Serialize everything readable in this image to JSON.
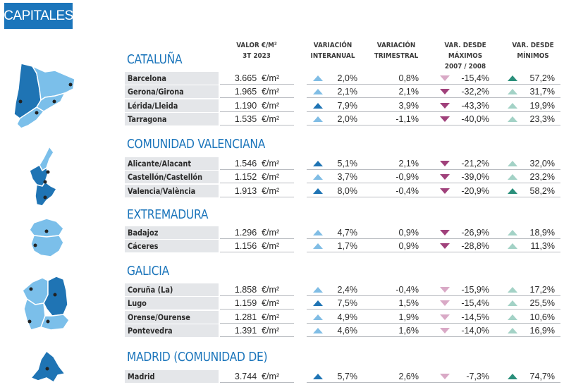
{
  "badge": "CAPITALES",
  "headers": [
    {
      "l1": "VALOR €/M²",
      "l2": "3T 2023"
    },
    {
      "l1": "VARIACIÓN",
      "l2": "INTERANUAL"
    },
    {
      "l1": "VARIACIÓN",
      "l2": "TRIMESTRAL"
    },
    {
      "l1": "VAR. DESDE MÁXIMOS",
      "l2": "2007 / 2008"
    },
    {
      "l1": "VAR. DESDE",
      "l2": "MÍNIMOS"
    }
  ],
  "colors": {
    "brand": "#1b75bb",
    "up_dark": "#1f74b4",
    "up_light": "#80bde5",
    "down_dark": "#a0417b",
    "down_light": "#d9a9c6",
    "min_dark": "#2a8f7b",
    "min_light": "#a3d2c6",
    "map_dark": "#1f74b4",
    "map_light": "#7bbfea"
  },
  "regions": [
    {
      "name": "CATALUÑA",
      "rows": [
        {
          "city": "Barcelona",
          "value": "3.665",
          "unit": "€/m²",
          "yoy": "2,0%",
          "yoy_t": "light",
          "qoq": "0,8%",
          "max": "-15,4%",
          "max_t": "light",
          "min": "57,2%",
          "min_t": "dark"
        },
        {
          "city": "Gerona/Girona",
          "value": "1.965",
          "unit": "€/m²",
          "yoy": "2,1%",
          "yoy_t": "light",
          "qoq": "2,1%",
          "max": "-32,2%",
          "max_t": "dark",
          "min": "31,7%",
          "min_t": "light"
        },
        {
          "city": "Lérida/Lleida",
          "value": "1.190",
          "unit": "€/m²",
          "yoy": "7,9%",
          "yoy_t": "dark",
          "qoq": "3,9%",
          "max": "-43,3%",
          "max_t": "dark",
          "min": "19,9%",
          "min_t": "light"
        },
        {
          "city": "Tarragona",
          "value": "1.535",
          "unit": "€/m²",
          "yoy": "2,0%",
          "yoy_t": "light",
          "qoq": "-1,1%",
          "max": "-40,0%",
          "max_t": "dark",
          "min": "23,3%",
          "min_t": "light"
        }
      ]
    },
    {
      "name": "COMUNIDAD VALENCIANA",
      "rows": [
        {
          "city": "Alicante/Alacant",
          "value": "1.546",
          "unit": "€/m²",
          "yoy": "5,1%",
          "yoy_t": "dark",
          "qoq": "2,1%",
          "max": "-21,2%",
          "max_t": "dark",
          "min": "32,0%",
          "min_t": "light"
        },
        {
          "city": "Castellón/Castellón",
          "value": "1.152",
          "unit": "€/m²",
          "yoy": "3,7%",
          "yoy_t": "light",
          "qoq": "-0,9%",
          "max": "-39,0%",
          "max_t": "dark",
          "min": "23,2%",
          "min_t": "light"
        },
        {
          "city": "Valencia/València",
          "value": "1.913",
          "unit": "€/m²",
          "yoy": "8,0%",
          "yoy_t": "dark",
          "qoq": "-0,4%",
          "max": "-20,9%",
          "max_t": "dark",
          "min": "58,2%",
          "min_t": "dark"
        }
      ]
    },
    {
      "name": "EXTREMADURA",
      "rows": [
        {
          "city": "Badajoz",
          "value": "1.296",
          "unit": "€/m²",
          "yoy": "4,7%",
          "yoy_t": "light",
          "qoq": "0,9%",
          "max": "-26,9%",
          "max_t": "dark",
          "min": "18,9%",
          "min_t": "light"
        },
        {
          "city": "Cáceres",
          "value": "1.156",
          "unit": "€/m²",
          "yoy": "1,7%",
          "yoy_t": "light",
          "qoq": "0,9%",
          "max": "-28,8%",
          "max_t": "dark",
          "min": "11,3%",
          "min_t": "light"
        }
      ]
    },
    {
      "name": "GALICIA",
      "rows": [
        {
          "city": "Coruña (La)",
          "value": "1.858",
          "unit": "€/m²",
          "yoy": "2,4%",
          "yoy_t": "light",
          "qoq": "-0,4%",
          "max": "-15,9%",
          "max_t": "light",
          "min": "17,2%",
          "min_t": "light"
        },
        {
          "city": "Lugo",
          "value": "1.159",
          "unit": "€/m²",
          "yoy": "7,5%",
          "yoy_t": "dark",
          "qoq": "1,5%",
          "max": "-15,4%",
          "max_t": "light",
          "min": "25,5%",
          "min_t": "light"
        },
        {
          "city": "Orense/Ourense",
          "value": "1.281",
          "unit": "€/m²",
          "yoy": "4,9%",
          "yoy_t": "light",
          "qoq": "1,9%",
          "max": "-14,5%",
          "max_t": "light",
          "min": "10,6%",
          "min_t": "light"
        },
        {
          "city": "Pontevedra",
          "value": "1.391",
          "unit": "€/m²",
          "yoy": "4,6%",
          "yoy_t": "light",
          "qoq": "1,6%",
          "max": "-14,0%",
          "max_t": "light",
          "min": "16,9%",
          "min_t": "light"
        }
      ]
    },
    {
      "name": "MADRID (COMUNIDAD DE)",
      "rows": [
        {
          "city": "Madrid",
          "value": "3.744",
          "unit": "€/m²",
          "yoy": "5,7%",
          "yoy_t": "dark",
          "qoq": "2,6%",
          "max": "-7,3%",
          "max_t": "light",
          "min": "74,7%",
          "min_t": "dark"
        }
      ]
    }
  ],
  "maps": [
    {
      "name": "cataluna-map-icon"
    },
    {
      "name": "valencia-map-icon"
    },
    {
      "name": "extremadura-map-icon"
    },
    {
      "name": "galicia-map-icon"
    },
    {
      "name": "madrid-map-icon"
    }
  ]
}
